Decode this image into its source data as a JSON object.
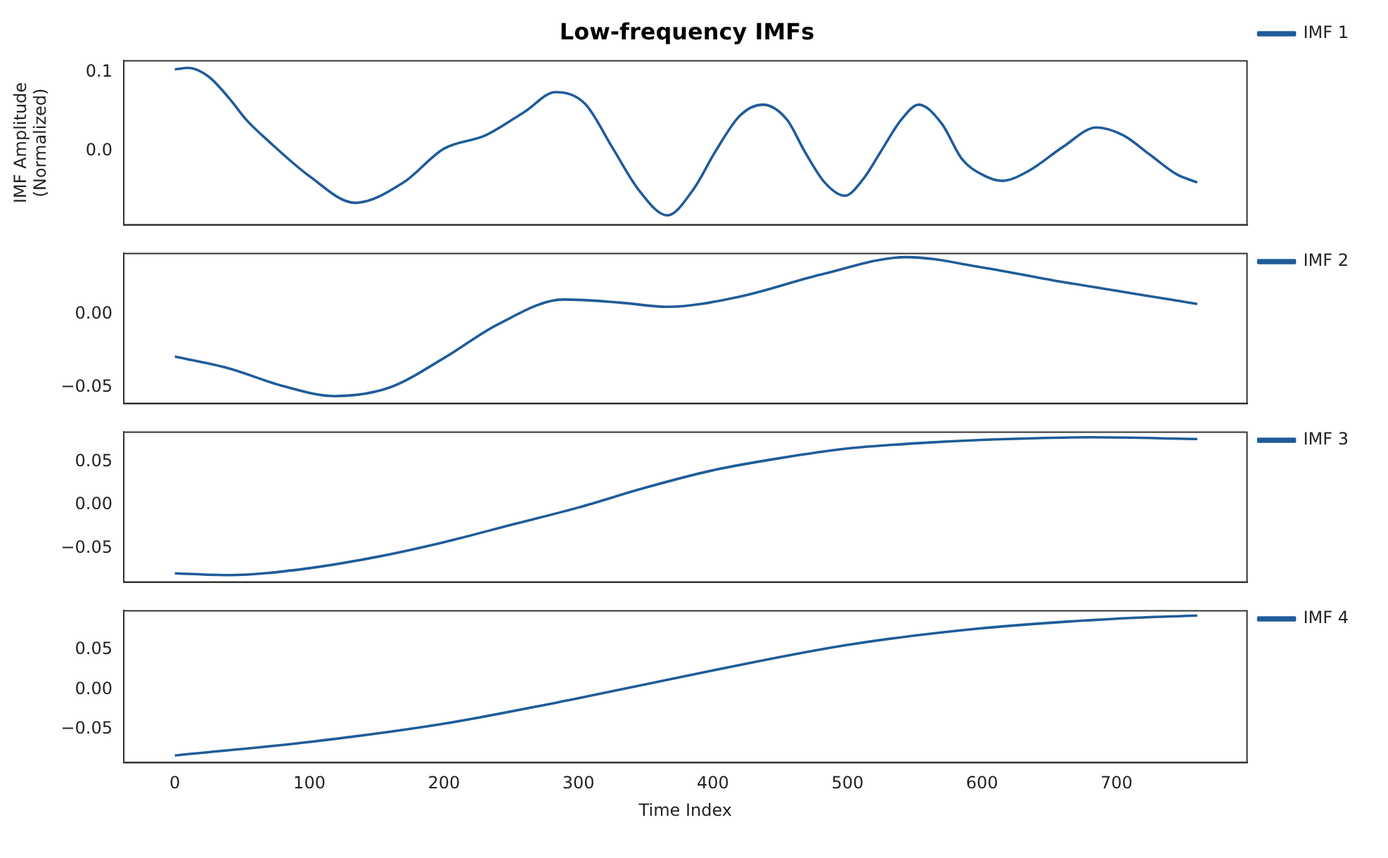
{
  "chart_data": [
    {
      "type": "line",
      "title": "Low-frequency IMFs",
      "ylabel": "IMF Amplitude\n(Normalized)",
      "xlim": [
        -38,
        797
      ],
      "xticks": [
        0,
        100,
        200,
        300,
        400,
        500,
        600,
        700
      ],
      "ylim": [
        -0.094,
        0.115
      ],
      "yticks": [
        {
          "value": 0.1,
          "label": "0.1"
        },
        {
          "value": 0,
          "label": "0.0"
        }
      ],
      "tick_labels": "y",
      "legend": "right",
      "grid": false,
      "marker": "none",
      "series": [
        {
          "name": "IMF 1",
          "color": "#1f5c99",
          "x": [
            0,
            10,
            25,
            40,
            53,
            70,
            100,
            134,
            170,
            200,
            231,
            260,
            283,
            305,
            325,
            345,
            366,
            385,
            402,
            420,
            437,
            455,
            468,
            483,
            498,
            512,
            525,
            540,
            553,
            570,
            585,
            600,
            615,
            635,
            660,
            685,
            705,
            725,
            745,
            760
          ],
          "values": [
            0.104,
            0.106,
            0.095,
            0.068,
            0.04,
            0.012,
            -0.032,
            -0.066,
            -0.04,
            0.003,
            0.02,
            0.05,
            0.075,
            0.06,
            0.005,
            -0.05,
            -0.082,
            -0.05,
            0.0,
            0.045,
            0.059,
            0.04,
            0.0,
            -0.04,
            -0.057,
            -0.035,
            0.0,
            0.04,
            0.059,
            0.035,
            -0.01,
            -0.03,
            -0.038,
            -0.025,
            0.005,
            0.03,
            0.02,
            -0.005,
            -0.03,
            -0.04
          ]
        }
      ]
    },
    {
      "type": "line",
      "xlim": [
        -38,
        797
      ],
      "xticks": [
        0,
        100,
        200,
        300,
        400,
        500,
        600,
        700
      ],
      "ylim": [
        -0.061,
        0.0415
      ],
      "yticks": [
        {
          "value": 0,
          "label": "0.00"
        },
        {
          "value": -0.05,
          "label": "−0.05"
        }
      ],
      "tick_labels": "y",
      "legend": "right",
      "grid": false,
      "marker": "none",
      "series": [
        {
          "name": "IMF 2",
          "color": "#1f5c99",
          "x": [
            0,
            40,
            80,
            119,
            160,
            200,
            240,
            289,
            330,
            366,
            420,
            480,
            544,
            600,
            660,
            720,
            760
          ],
          "values": [
            -0.029,
            -0.037,
            -0.049,
            -0.056,
            -0.05,
            -0.03,
            -0.007,
            0.01,
            0.008,
            0.005,
            0.012,
            0.027,
            0.039,
            0.032,
            0.022,
            0.013,
            0.007
          ]
        }
      ]
    },
    {
      "type": "line",
      "xlim": [
        -38,
        797
      ],
      "xticks": [
        0,
        100,
        200,
        300,
        400,
        500,
        600,
        700
      ],
      "ylim": [
        -0.089,
        0.084
      ],
      "yticks": [
        {
          "value": 0.05,
          "label": "0.05"
        },
        {
          "value": 0,
          "label": "0.00"
        },
        {
          "value": -0.05,
          "label": "−0.05"
        }
      ],
      "tick_labels": "y",
      "legend": "right",
      "grid": false,
      "marker": "none",
      "series": [
        {
          "name": "IMF 3",
          "color": "#1f5c99",
          "x": [
            0,
            40,
            100,
            150,
            200,
            250,
            300,
            350,
            400,
            450,
            500,
            550,
            600,
            680,
            760
          ],
          "values": [
            -0.079,
            -0.081,
            -0.073,
            -0.06,
            -0.043,
            -0.023,
            -0.003,
            0.02,
            0.04,
            0.054,
            0.065,
            0.071,
            0.075,
            0.078,
            0.076
          ]
        }
      ]
    },
    {
      "type": "line",
      "xlabel": "Time Index",
      "xlim": [
        -38,
        797
      ],
      "xticks": [
        0,
        100,
        200,
        300,
        400,
        500,
        600,
        700
      ],
      "ylim": [
        -0.092,
        0.099
      ],
      "yticks": [
        {
          "value": 0.05,
          "label": "0.05"
        },
        {
          "value": 0,
          "label": "0.00"
        },
        {
          "value": -0.05,
          "label": "−0.05"
        }
      ],
      "legend": "right",
      "grid": false,
      "marker": "none",
      "series": [
        {
          "name": "IMF 4",
          "color": "#1f5c99",
          "x": [
            0,
            100,
            200,
            300,
            400,
            500,
            600,
            700,
            760
          ],
          "values": [
            -0.083,
            -0.066,
            -0.043,
            -0.011,
            0.024,
            0.056,
            0.077,
            0.089,
            0.093
          ]
        }
      ]
    }
  ]
}
